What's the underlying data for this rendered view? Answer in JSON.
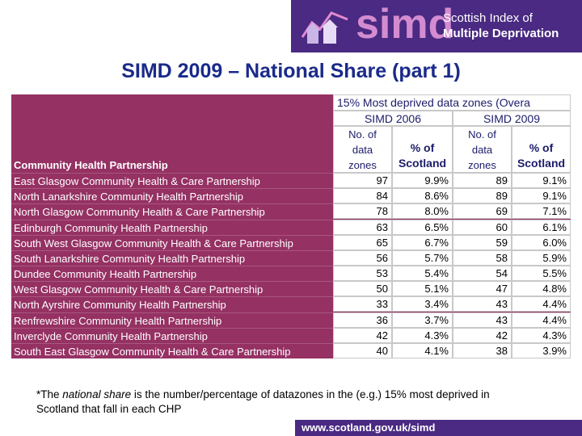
{
  "logo": {
    "brand": "simd",
    "line1": "Scottish Index of",
    "line2": "Multiple Deprivation"
  },
  "title": "SIMD 2009 – National Share (part 1)",
  "table": {
    "group_header": "15% Most deprived data zones (Overa",
    "period_headers": [
      "SIMD 2006",
      "SIMD 2009"
    ],
    "column_headers": [
      "Community Health Partnership",
      "No. of data zones",
      "% of Scotland",
      "No. of data zones",
      "% of Scotland"
    ],
    "rows": [
      [
        "East Glasgow Community Health & Care Partnership",
        97,
        "9.9%",
        89,
        "9.1%"
      ],
      [
        "North Lanarkshire Community Health Partnership",
        84,
        "8.6%",
        89,
        "9.1%"
      ],
      [
        "North Glasgow Community Health & Care Partnership",
        78,
        "8.0%",
        69,
        "7.1%"
      ],
      [
        "Edinburgh Community Health Partnership",
        63,
        "6.5%",
        60,
        "6.1%"
      ],
      [
        "South West Glasgow Community Health & Care Partnership",
        65,
        "6.7%",
        59,
        "6.0%"
      ],
      [
        "South Lanarkshire Community Health Partnership",
        56,
        "5.7%",
        58,
        "5.9%"
      ],
      [
        "Dundee Community Health Partnership",
        53,
        "5.4%",
        54,
        "5.5%"
      ],
      [
        "West Glasgow Community Health & Care Partnership",
        50,
        "5.1%",
        47,
        "4.8%"
      ],
      [
        "North Ayrshire Community Health Partnership",
        33,
        "3.4%",
        43,
        "4.4%"
      ],
      [
        "Renfrewshire Community Health Partnership",
        36,
        "3.7%",
        43,
        "4.4%"
      ],
      [
        "Inverclyde Community Health Partnership",
        42,
        "4.3%",
        42,
        "4.3%"
      ],
      [
        "South East Glasgow Community Health & Care Partnership",
        40,
        "4.1%",
        38,
        "3.9%"
      ]
    ]
  },
  "footnote": {
    "before": "*The ",
    "emphasis": "national share",
    "after": " is the number/percentage of datazones in the (e.g.) 15% most deprived in Scotland that fall in each CHP"
  },
  "footer_url": "www.scotland.gov.uk/simd"
}
